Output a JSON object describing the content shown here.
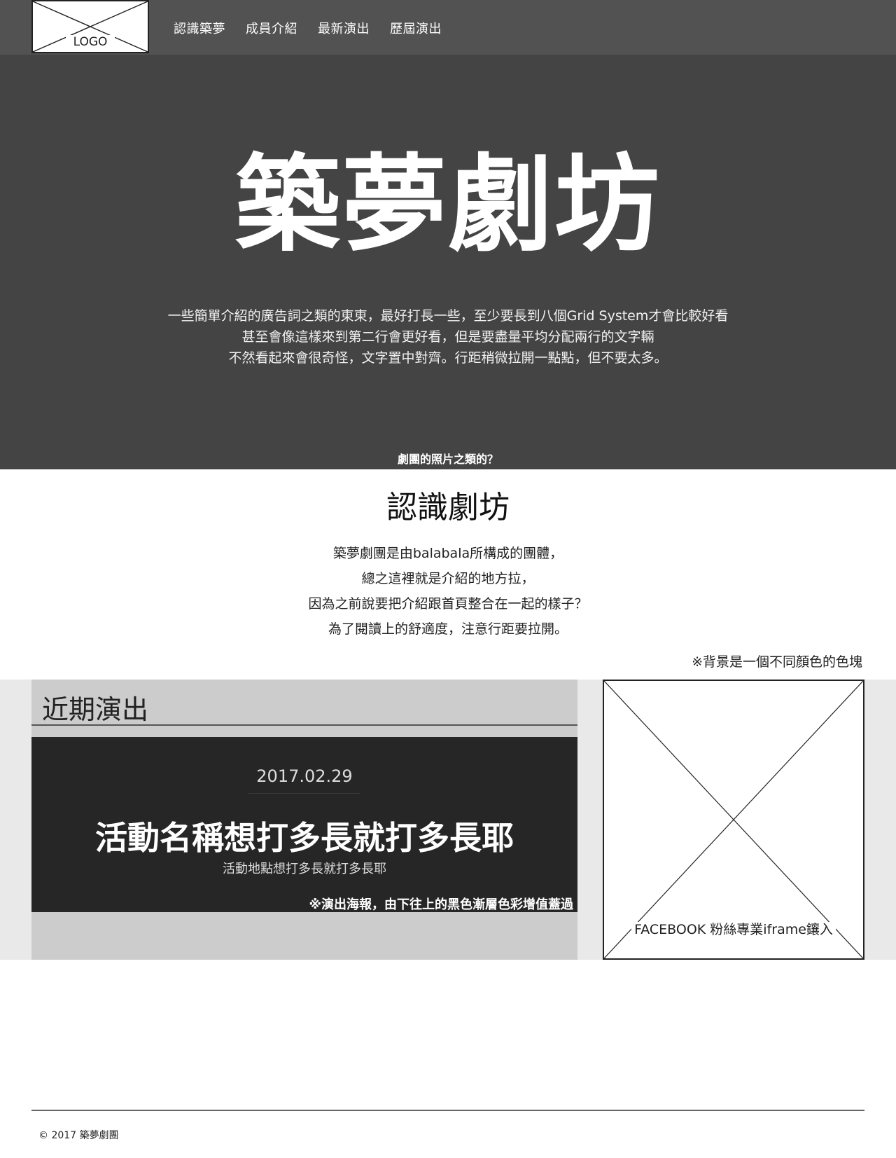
{
  "nav": {
    "logo_text": "LOGO",
    "links": [
      "認識築夢",
      "成員介紹",
      "最新演出",
      "歷屆演出"
    ]
  },
  "hero": {
    "title": "築夢劇坊",
    "description_lines": [
      "一些簡單介紹的廣告詞之類的東東，最好打長一些，至少要長到八個Grid System才會比較好看",
      "甚至會像這樣來到第二行會更好看，但是要盡量平均分配兩行的文字輛",
      "不然看起來會很奇怪，文字置中對齊。行距稍微拉開一點點，但不要太多。"
    ],
    "photo_caption": "劇團的照片之類的？"
  },
  "about": {
    "title": "認識劇坊",
    "lines": [
      "築夢劇團是由balabala所構成的團體，",
      "總之這裡就是介紹的地方拉，",
      "因為之前說要把介紹跟首頁整合在一起的樣子？",
      "為了閱讀上的舒適度，注意行距要拉開。"
    ],
    "note": "※背景是一個不同顏色的色塊"
  },
  "events": {
    "heading": "近期演出",
    "date": "2017.02.29",
    "name": "活動名稱想打多長就打多長耶",
    "place": "活動地點想打多長就打多長耶",
    "poster_note": "※演出海報，由下往上的黑色漸層色彩增值蓋過"
  },
  "facebook": {
    "label": "FACEBOOK 粉絲專業iframe鑲入"
  },
  "footer": {
    "copyright": "© 2017 築夢劇團"
  },
  "colors": {
    "nav_bg": "#525252",
    "hero_bg": "#444444",
    "band_bg": "#e9e9e9",
    "events_bg": "#cccccc",
    "poster_bg": "#262626"
  }
}
